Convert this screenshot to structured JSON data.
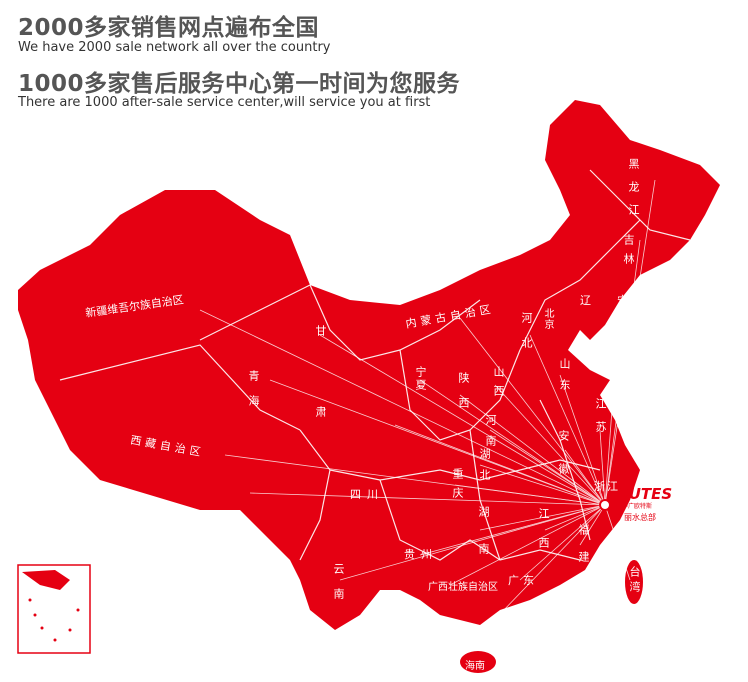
{
  "header": {
    "title1": "2000多家销售网点遍布全国",
    "subtitle1": "We have 2000 sale network all over the country",
    "title2": "1000多家售后服务中心第一时间为您服务",
    "subtitle2": "There are 1000 after-sale service center,will service you at first"
  },
  "map": {
    "fill_color": "#e50012",
    "hq": {
      "logo": "OUTES",
      "logo_sub": "中广欧特斯",
      "label": "丽水总部"
    },
    "provinces": [
      "新疆维吾尔族自治区",
      "西藏自治区",
      "青海",
      "甘肃",
      "内蒙古自治区",
      "宁夏",
      "陕西",
      "山西",
      "河北",
      "北京",
      "山东",
      "河南",
      "湖北",
      "安徽",
      "江苏",
      "浙江",
      "重庆",
      "四川",
      "湖南",
      "江西",
      "福建",
      "贵州",
      "云南",
      "广西壮族自治区",
      "广东",
      "台湾",
      "海南",
      "黑龙江",
      "吉林",
      "辽宁"
    ]
  }
}
